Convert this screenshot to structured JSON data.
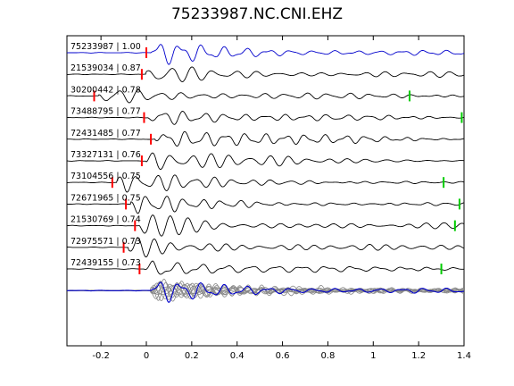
{
  "title": "75233987.NC.CNI.EHZ",
  "chart_data": {
    "type": "line",
    "title": "75233987.NC.CNI.EHZ",
    "xlim": [
      -0.35,
      1.4
    ],
    "xticks": [
      {
        "value": -0.2,
        "label": "-0.2"
      },
      {
        "value": 0,
        "label": "0"
      },
      {
        "value": 0.2,
        "label": "0.2"
      },
      {
        "value": 0.4,
        "label": "0.4"
      },
      {
        "value": 0.6,
        "label": "0.6"
      },
      {
        "value": 0.8,
        "label": "0.8"
      },
      {
        "value": 1,
        "label": "1"
      },
      {
        "value": 1.2,
        "label": "1.2"
      },
      {
        "value": 1.4,
        "label": "1.4"
      }
    ],
    "grid": false,
    "traces": [
      {
        "label": "75233987 | 1.00",
        "color": "#0000cc",
        "p_pick": 0.0,
        "s_pick": null
      },
      {
        "label": "21539034 | 0.87",
        "color": "#000000",
        "p_pick": -0.02,
        "s_pick": null
      },
      {
        "label": "30200442 | 0.78",
        "color": "#000000",
        "p_pick": -0.23,
        "s_pick": 1.16
      },
      {
        "label": "73488795 | 0.77",
        "color": "#000000",
        "p_pick": -0.01,
        "s_pick": 1.39
      },
      {
        "label": "72431485 | 0.77",
        "color": "#000000",
        "p_pick": 0.02,
        "s_pick": null
      },
      {
        "label": "73327131 | 0.76",
        "color": "#000000",
        "p_pick": -0.02,
        "s_pick": null
      },
      {
        "label": "73104556 | 0.75",
        "color": "#000000",
        "p_pick": -0.15,
        "s_pick": 1.31
      },
      {
        "label": "72671965 | 0.75",
        "color": "#000000",
        "p_pick": -0.09,
        "s_pick": 1.38
      },
      {
        "label": "21530769 | 0.74",
        "color": "#000000",
        "p_pick": -0.05,
        "s_pick": 1.36
      },
      {
        "label": "72975571 | 0.73",
        "color": "#000000",
        "p_pick": -0.1,
        "s_pick": null
      },
      {
        "label": "72439155 | 0.73",
        "color": "#000000",
        "p_pick": -0.03,
        "s_pick": 1.3
      }
    ],
    "stack": {
      "description_color_main": "#0000cc",
      "color_others": "#888888"
    },
    "colors": {
      "p_pick": "#ff0000",
      "s_pick": "#00cc00"
    }
  }
}
